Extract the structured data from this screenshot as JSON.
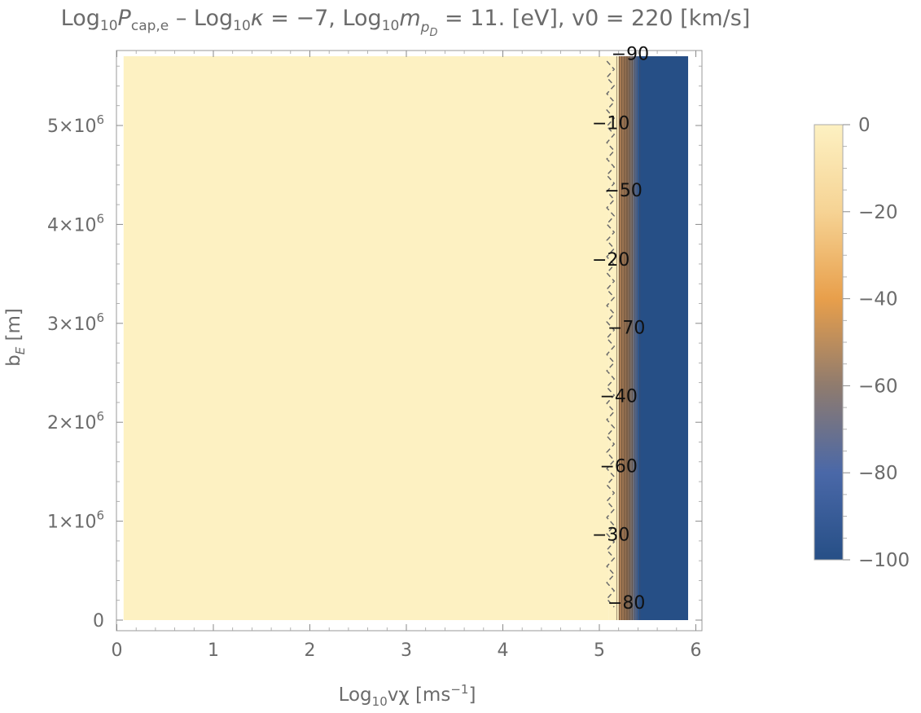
{
  "chart_data": {
    "type": "heatmap",
    "title": {
      "t1": "Log",
      "t1_sub": "10",
      "t2": "P",
      "t2_sub": "cap,e",
      "t3": " – Log",
      "t3_sub": "10",
      "t4": "κ",
      "t5": " = −7, Log",
      "t5_sub": "10",
      "t6": "m",
      "t6_sub": "p",
      "t6_subsub": "D",
      "t7": " = 11. [eV], v0 = 220 [km/s]"
    },
    "xlabel": {
      "a": "Log",
      "a_sub": "10",
      "b": "vχ [ms",
      "b_sup": "−1",
      "c": "]"
    },
    "ylabel": {
      "a": "b",
      "a_sub": "E",
      "b": " [m]"
    },
    "xlim": [
      0,
      6
    ],
    "ylim": [
      0,
      5700000
    ],
    "x_ticks": [
      {
        "value": 0,
        "label": "0"
      },
      {
        "value": 1,
        "label": "1"
      },
      {
        "value": 2,
        "label": "2"
      },
      {
        "value": 3,
        "label": "3"
      },
      {
        "value": 4,
        "label": "4"
      },
      {
        "value": 5,
        "label": "5"
      },
      {
        "value": 6,
        "label": "6"
      }
    ],
    "y_ticks": [
      {
        "value": 0,
        "mant": "0",
        "exp": ""
      },
      {
        "value": 1000000,
        "mant": "1×10",
        "exp": "6"
      },
      {
        "value": 2000000,
        "mant": "2×10",
        "exp": "6"
      },
      {
        "value": 3000000,
        "mant": "3×10",
        "exp": "6"
      },
      {
        "value": 4000000,
        "mant": "4×10",
        "exp": "6"
      },
      {
        "value": 5000000,
        "mant": "5×10",
        "exp": "6"
      }
    ],
    "regions": [
      {
        "x_from": 0.07,
        "x_to": 5.1,
        "value": 0
      },
      {
        "x_from": 5.1,
        "x_to": 5.2,
        "value": -5
      },
      {
        "x_from": 5.2,
        "x_to": 5.4,
        "value": -60
      },
      {
        "x_from": 5.4,
        "x_to": 5.92,
        "value": -100
      }
    ],
    "contour_labels": [
      {
        "label": "−90",
        "x": 5.32,
        "y": 5730000
      },
      {
        "label": "−10",
        "x": 5.12,
        "y": 5030000
      },
      {
        "label": "−50",
        "x": 5.25,
        "y": 4350000
      },
      {
        "label": "−20",
        "x": 5.12,
        "y": 3650000
      },
      {
        "label": "−70",
        "x": 5.28,
        "y": 2960000
      },
      {
        "label": "−40",
        "x": 5.2,
        "y": 2270000
      },
      {
        "label": "−60",
        "x": 5.2,
        "y": 1560000
      },
      {
        "label": "−30",
        "x": 5.12,
        "y": 870000
      },
      {
        "label": "−80",
        "x": 5.28,
        "y": 180000
      }
    ],
    "colorbar": {
      "range": [
        -100,
        0
      ],
      "ticks": [
        {
          "value": 0,
          "label": "0"
        },
        {
          "value": -20,
          "label": "−20"
        },
        {
          "value": -40,
          "label": "−40"
        },
        {
          "value": -60,
          "label": "−60"
        },
        {
          "value": -80,
          "label": "−80"
        },
        {
          "value": -100,
          "label": "−100"
        }
      ],
      "colors": [
        "#fdf1c2",
        "#f6d394",
        "#e89f4b",
        "#8f7b6e",
        "#4a68a8",
        "#264f86"
      ]
    },
    "colors": {
      "high": "#fdf1c2",
      "low": "#265187",
      "text": "#6b6b6b"
    }
  }
}
